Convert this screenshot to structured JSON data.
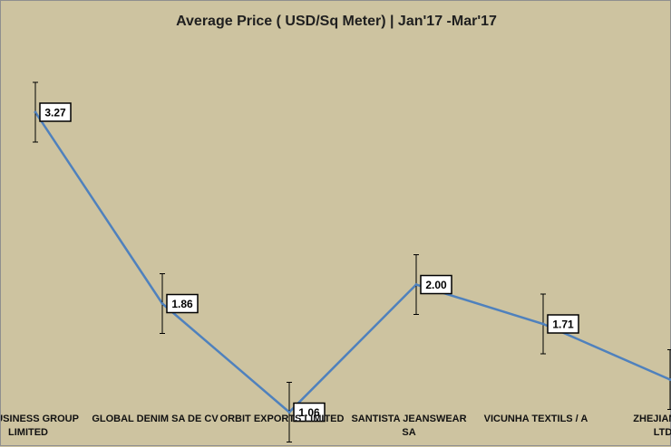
{
  "chart_data": {
    "type": "line",
    "title": "Average Price ( USD/Sq Meter) | Jan'17 -Mar'17",
    "categories": [
      "M BUSINESS GROUP LIMITED",
      "GLOBAL DENIM SA DE CV",
      "ORBIT EXPORTS LIMITED",
      "SANTISTA JEANSWEAR SA",
      "VICUNHA TEXTILS / A",
      "ZHEJIANG T LTD"
    ],
    "category_lines": [
      [
        "M BUSINESS GROUP",
        "LIMITED"
      ],
      [
        "GLOBAL DENIM SA DE CV"
      ],
      [
        "ORBIT EXPORTS LIMITED"
      ],
      [
        "SANTISTA JEANSWEAR",
        "SA"
      ],
      [
        "VICUNHA TEXTILS / A"
      ],
      [
        "ZHEJIANG T",
        "LTD"
      ]
    ],
    "values": [
      3.27,
      1.86,
      1.06,
      2.0,
      1.71,
      1.3
    ],
    "data_labels": [
      "3.27",
      "1.86",
      "1.06",
      "2.00",
      "1.71",
      ""
    ],
    "error_bars": true,
    "grid": false,
    "axes_visible": false,
    "line_color": "#4f81bd",
    "background": "#cdc3a0"
  }
}
